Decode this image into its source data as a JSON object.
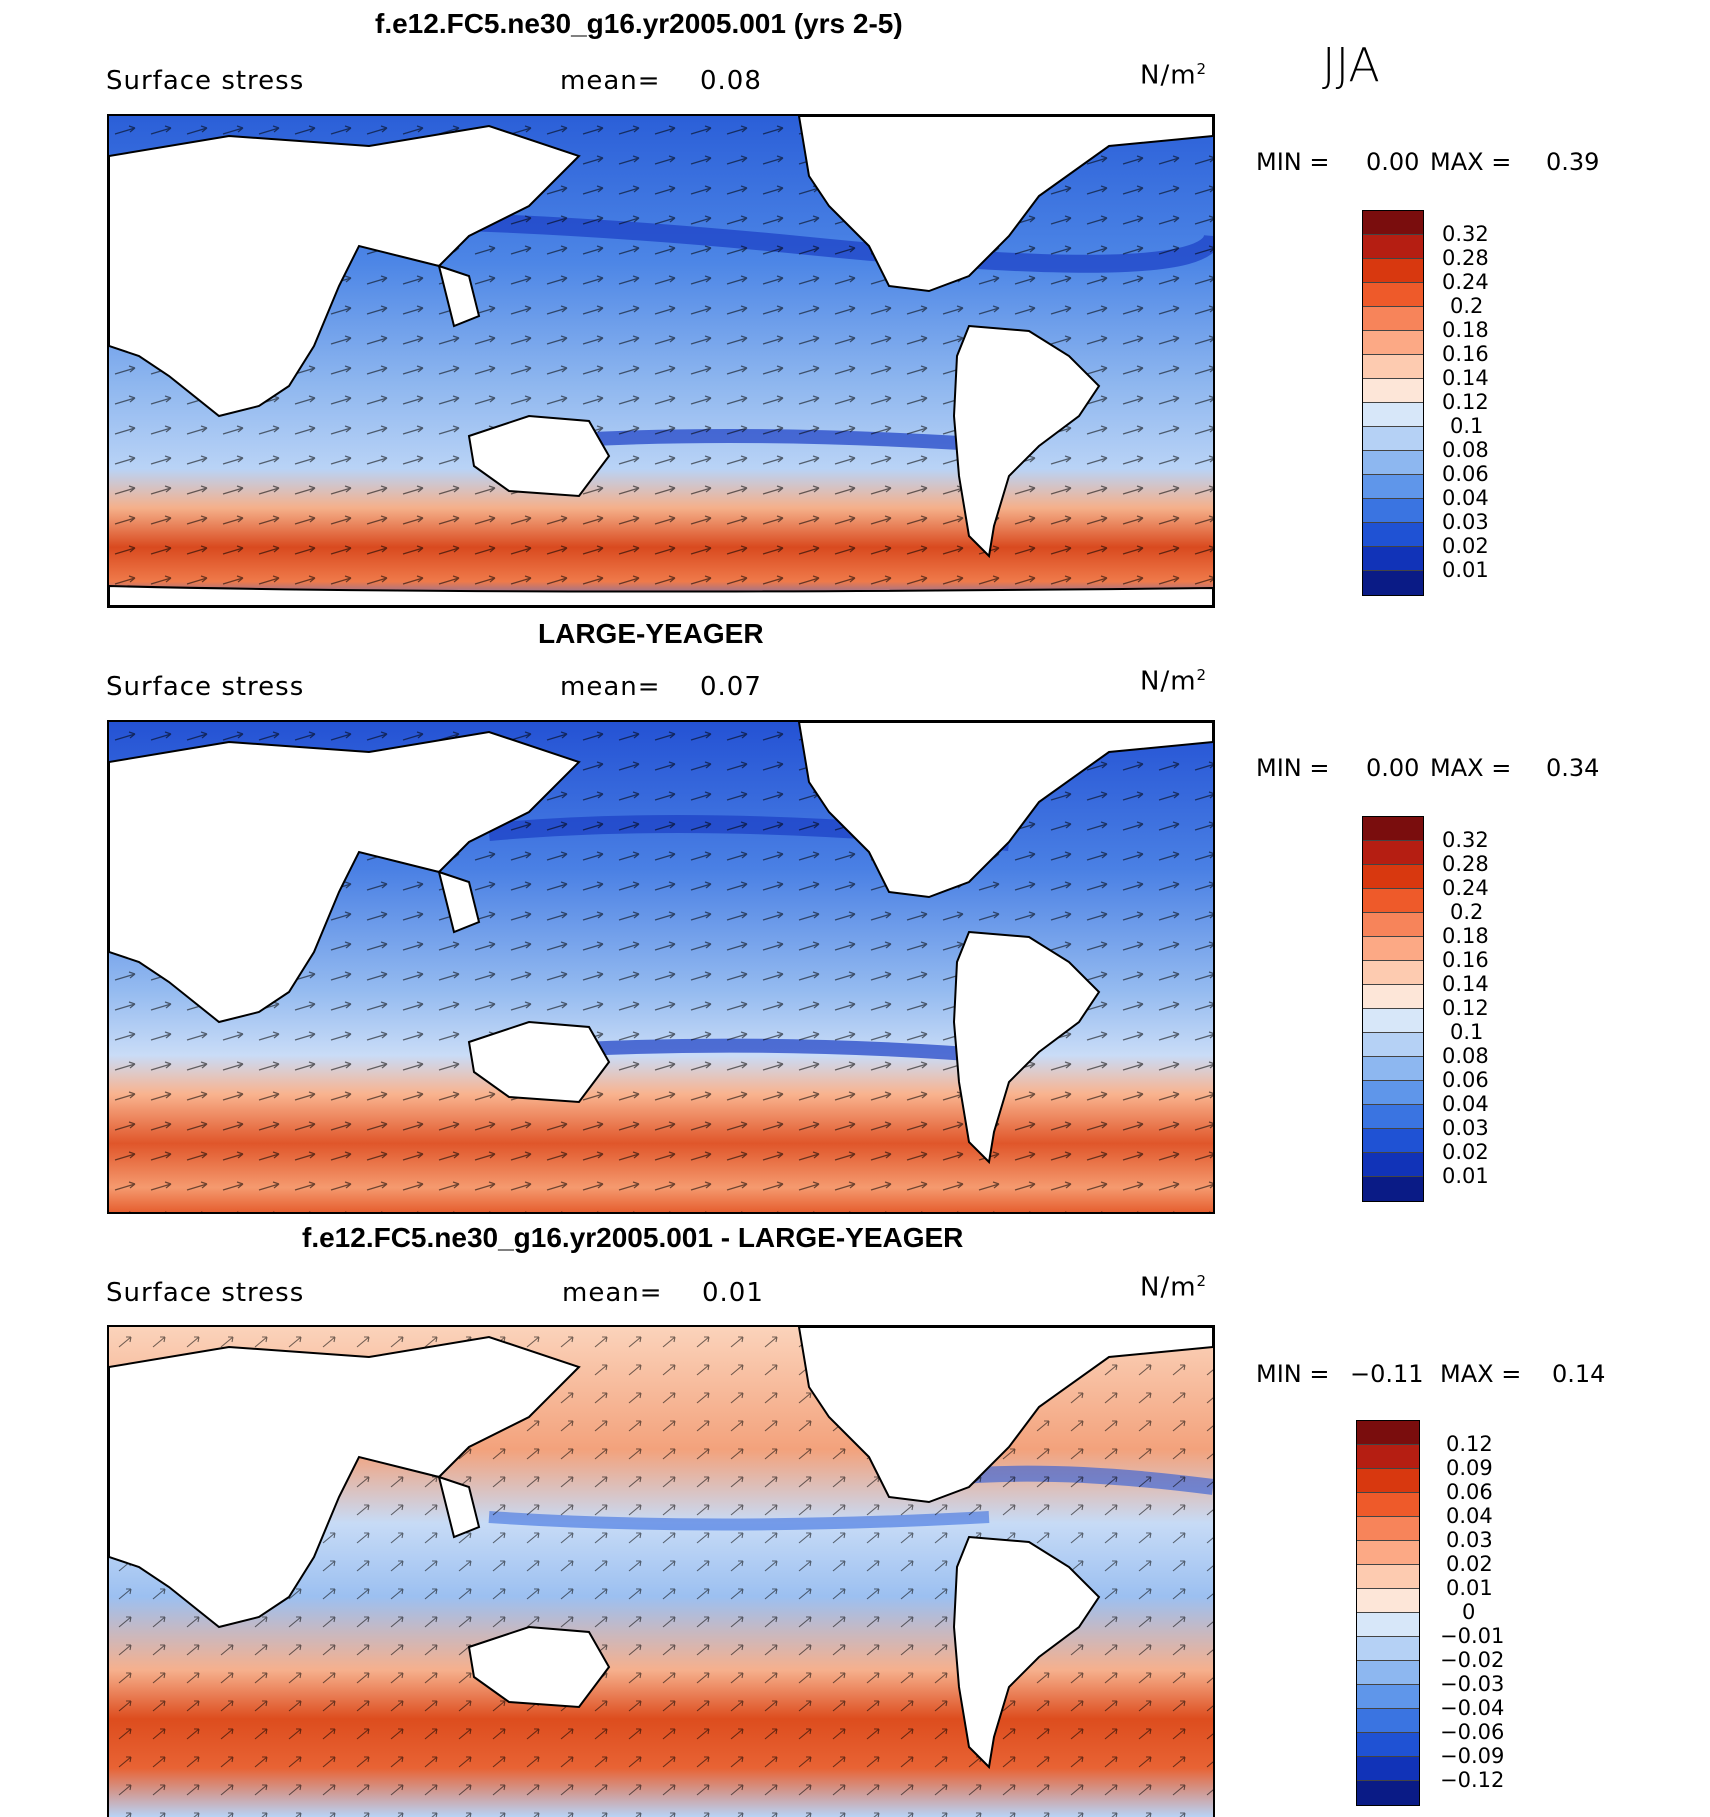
{
  "season": "JJA",
  "panels": [
    {
      "title": "f.e12.FC5.ne30_g16.yr2005.001 (yrs 2-5)",
      "variable": "Surface stress",
      "mean_label": "mean=",
      "mean_value": "0.08",
      "units": "N/m",
      "units_sup": "2",
      "min_label": "MIN =",
      "min_value": "0.00",
      "max_label": "MAX =",
      "max_value": "0.39",
      "colorbar_levels": [
        "0.32",
        "0.28",
        "0.24",
        "0.2",
        "0.18",
        "0.16",
        "0.14",
        "0.12",
        "0.1",
        "0.08",
        "0.06",
        "0.04",
        "0.03",
        "0.02",
        "0.01"
      ],
      "colorbar_colors": [
        "#7a0d0d",
        "#b51e12",
        "#d8380f",
        "#ee5a2a",
        "#f7845a",
        "#fca985",
        "#fdcbb0",
        "#fde6d8",
        "#d7e7f9",
        "#b5d1f5",
        "#8db7f0",
        "#5f96ea",
        "#3a74e1",
        "#1f52d4",
        "#1133b8",
        "#0a1b86"
      ]
    },
    {
      "title": "LARGE-YEAGER",
      "variable": "Surface stress",
      "mean_label": "mean=",
      "mean_value": "0.07",
      "units": "N/m",
      "units_sup": "2",
      "min_label": "MIN =",
      "min_value": "0.00",
      "max_label": "MAX =",
      "max_value": "0.34",
      "colorbar_levels": [
        "0.32",
        "0.28",
        "0.24",
        "0.2",
        "0.18",
        "0.16",
        "0.14",
        "0.12",
        "0.1",
        "0.08",
        "0.06",
        "0.04",
        "0.03",
        "0.02",
        "0.01"
      ],
      "colorbar_colors": [
        "#7a0d0d",
        "#b51e12",
        "#d8380f",
        "#ee5a2a",
        "#f7845a",
        "#fca985",
        "#fdcbb0",
        "#fde6d8",
        "#d7e7f9",
        "#b5d1f5",
        "#8db7f0",
        "#5f96ea",
        "#3a74e1",
        "#1f52d4",
        "#1133b8",
        "#0a1b86"
      ]
    },
    {
      "title": "f.e12.FC5.ne30_g16.yr2005.001 - LARGE-YEAGER",
      "variable": "Surface stress",
      "mean_label": "mean=",
      "mean_value": "0.01",
      "units": "N/m",
      "units_sup": "2",
      "min_label": "MIN =",
      "min_value": "−0.11",
      "max_label": "MAX =",
      "max_value": "0.14",
      "colorbar_levels": [
        "0.12",
        "0.09",
        "0.06",
        "0.04",
        "0.03",
        "0.02",
        "0.01",
        "0",
        "−0.01",
        "−0.02",
        "−0.03",
        "−0.04",
        "−0.06",
        "−0.09",
        "−0.12"
      ],
      "colorbar_colors": [
        "#7a0d0d",
        "#b51e12",
        "#d8380f",
        "#ee5a2a",
        "#f7845a",
        "#fca985",
        "#fdcbb0",
        "#fde6d8",
        "#d7e7f9",
        "#b5d1f5",
        "#8db7f0",
        "#5f96ea",
        "#3a74e1",
        "#1f52d4",
        "#1133b8",
        "#0a1b86"
      ]
    }
  ]
}
